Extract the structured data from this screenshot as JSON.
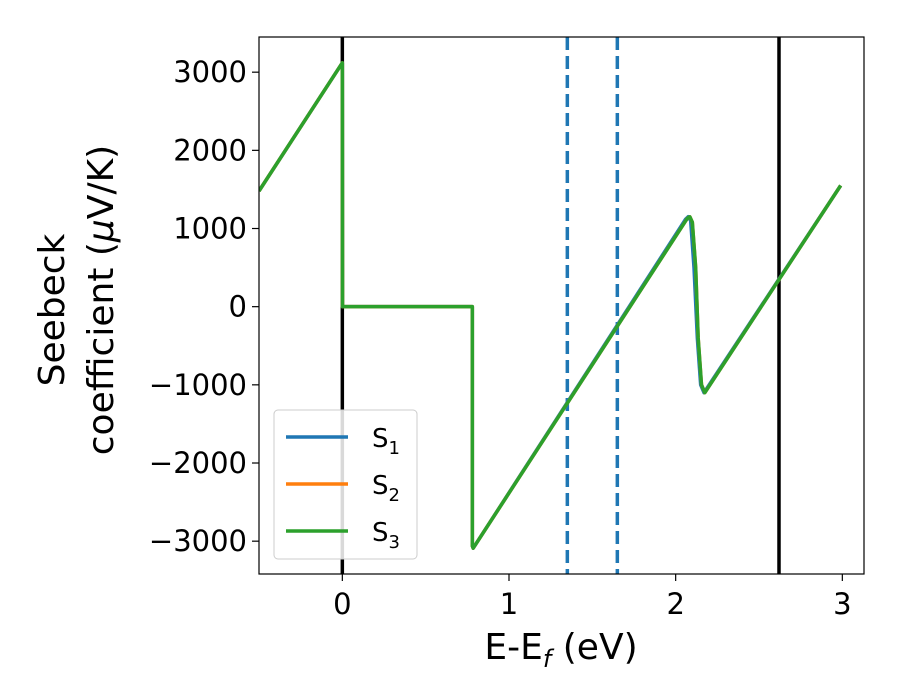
{
  "chart_data": {
    "type": "line",
    "title": "",
    "xlabel": "E-E",
    "xlabel_subscript": "f",
    "xlabel_suffix": " (eV)",
    "ylabel_line1": "Seebeck",
    "ylabel_line2_prefix": "coefficient  (",
    "ylabel_mu": "μ",
    "ylabel_line2_suffix": "V/K)",
    "xlim": [
      -0.5,
      3.13
    ],
    "ylim": [
      -3420,
      3450
    ],
    "x_ticks": [
      0,
      1,
      2,
      3
    ],
    "x_tick_labels": [
      "0",
      "1",
      "2",
      "3"
    ],
    "y_ticks": [
      3000,
      2000,
      1000,
      0,
      -1000,
      -2000,
      -3000
    ],
    "y_tick_labels": [
      "3000",
      "2000",
      "1000",
      "0",
      "−1000",
      "−2000",
      "−3000"
    ],
    "grid": false,
    "legend_position": "lower-left",
    "vertical_lines": [
      {
        "x": 0.0,
        "color": "#000000",
        "style": "solid"
      },
      {
        "x": 2.62,
        "color": "#000000",
        "style": "solid"
      },
      {
        "x": 1.35,
        "color": "#1f77b4",
        "style": "dashed"
      },
      {
        "x": 1.65,
        "color": "#1f77b4",
        "style": "dashed"
      }
    ],
    "series": [
      {
        "name": "S",
        "subscript": "1",
        "color": "#1f77b4",
        "points": [
          [
            -0.5,
            1480
          ],
          [
            0.0,
            3120
          ],
          [
            0.001,
            0
          ],
          [
            0.78,
            0
          ],
          [
            0.78,
            -3060
          ],
          [
            0.785,
            -3090
          ],
          [
            2.06,
            1120
          ],
          [
            2.075,
            1150
          ],
          [
            2.09,
            1100
          ],
          [
            2.11,
            500
          ],
          [
            2.13,
            -400
          ],
          [
            2.15,
            -1000
          ],
          [
            2.17,
            -1100
          ],
          [
            2.99,
            1550
          ]
        ]
      },
      {
        "name": "S",
        "subscript": "2",
        "color": "#ff7f0e",
        "points": [
          [
            -0.5,
            1480
          ],
          [
            0.0,
            3120
          ],
          [
            0.001,
            0
          ],
          [
            0.78,
            0
          ],
          [
            0.78,
            -3060
          ],
          [
            0.785,
            -3090
          ],
          [
            2.07,
            1130
          ],
          [
            2.085,
            1150
          ],
          [
            2.1,
            1080
          ],
          [
            2.12,
            500
          ],
          [
            2.135,
            -400
          ],
          [
            2.155,
            -1000
          ],
          [
            2.175,
            -1100
          ],
          [
            2.99,
            1550
          ]
        ]
      },
      {
        "name": "S",
        "subscript": "3",
        "color": "#2ca02c",
        "points": [
          [
            -0.5,
            1480
          ],
          [
            0.0,
            3120
          ],
          [
            0.001,
            0
          ],
          [
            0.78,
            0
          ],
          [
            0.78,
            -3060
          ],
          [
            0.785,
            -3090
          ],
          [
            2.07,
            1130
          ],
          [
            2.085,
            1150
          ],
          [
            2.1,
            1080
          ],
          [
            2.12,
            500
          ],
          [
            2.135,
            -400
          ],
          [
            2.155,
            -1000
          ],
          [
            2.175,
            -1100
          ],
          [
            2.99,
            1550
          ]
        ]
      }
    ]
  }
}
